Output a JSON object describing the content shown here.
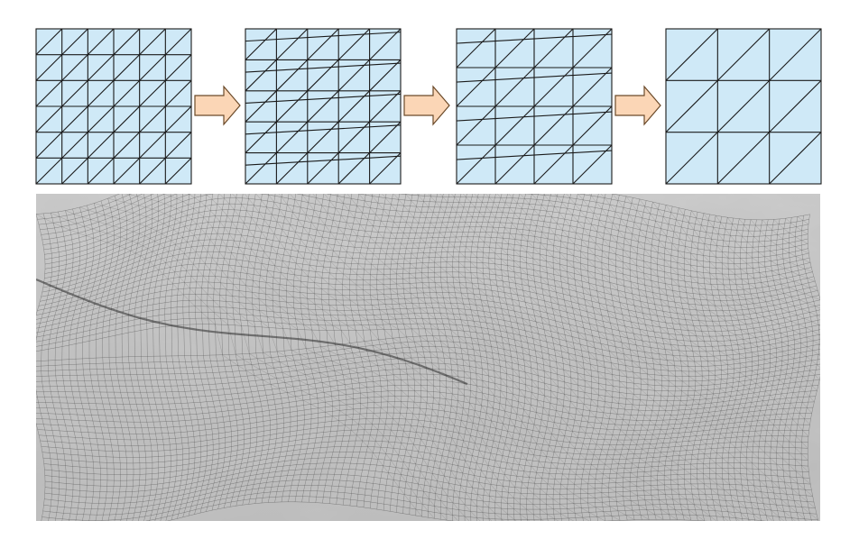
{
  "diagram": {
    "stages": [
      {
        "id": "stage-1",
        "grid": 6,
        "description_visible": false
      },
      {
        "id": "stage-2",
        "grid": 5,
        "description_visible": false
      },
      {
        "id": "stage-3",
        "grid": 4,
        "description_visible": false
      },
      {
        "id": "stage-4",
        "grid": 3,
        "description_visible": false
      }
    ],
    "arrows": 3,
    "colors": {
      "cell_fill": "#cfe9f7",
      "edge": "#1a1a1a",
      "arrow_fill": "#fbd6b6",
      "arrow_stroke": "#6b4a2a",
      "terrain_base": "#c9c9c9"
    },
    "rendering": {
      "name": "terrain-wireframe-render"
    }
  }
}
